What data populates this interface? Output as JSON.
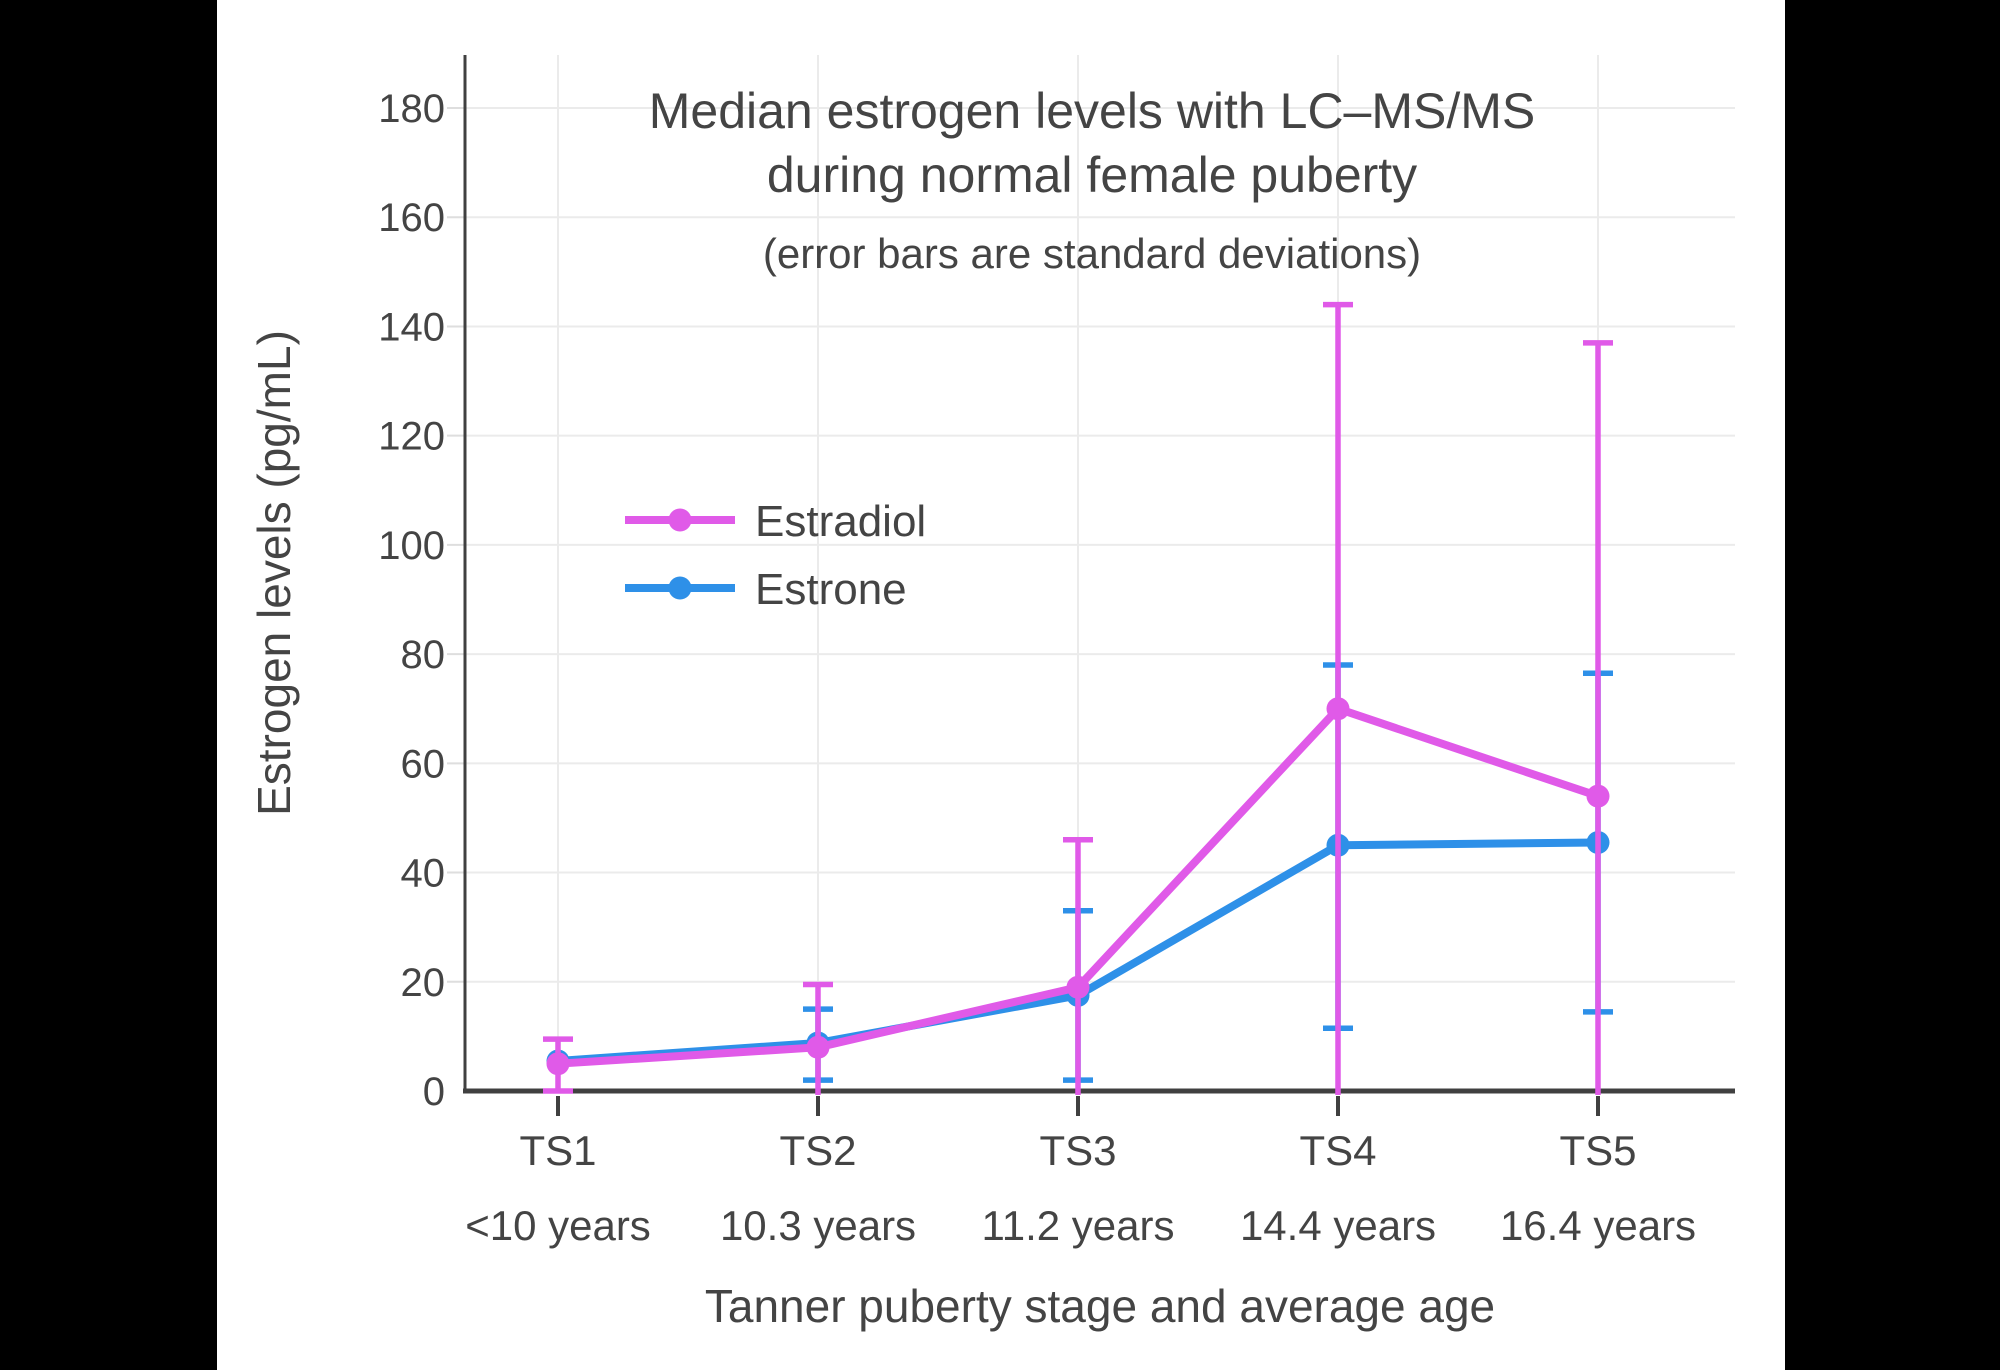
{
  "page": {
    "background": "#000000",
    "canvas_background": "#ffffff"
  },
  "chart_data": {
    "type": "line",
    "title": "Median estrogen levels with LC–MS/MS",
    "title_line2": "during normal female puberty",
    "subtitle": "(error bars are standard deviations)",
    "xlabel": "Tanner puberty stage and average age",
    "ylabel": "Estrogen levels (pg/mL)",
    "categories": [
      "TS1",
      "TS2",
      "TS3",
      "TS4",
      "TS5"
    ],
    "category_ages": [
      "<10 years",
      "10.3 years",
      "11.2 years",
      "14.4 years",
      "16.4 years"
    ],
    "yticks": [
      0,
      20,
      40,
      60,
      80,
      100,
      120,
      140,
      160,
      180
    ],
    "ylim": [
      0,
      190
    ],
    "grid": true,
    "error_bars": "standard deviations",
    "legend_position": "inside upper-left",
    "legend_entries": [
      "Estradiol",
      "Estrone"
    ],
    "series": [
      {
        "name": "Estrone",
        "color": "#2E90E8",
        "values": [
          5.5,
          8.8,
          17.5,
          45,
          45.5
        ],
        "err_upper": [
          null,
          15,
          33,
          78,
          76.5
        ],
        "err_lower": [
          null,
          2,
          2,
          11.5,
          14.5
        ]
      },
      {
        "name": "Estradiol",
        "color": "#E05AE8",
        "values": [
          5,
          8,
          19,
          70,
          54
        ],
        "err_upper": [
          9.5,
          19.5,
          46,
          144,
          137
        ],
        "err_lower": [
          0,
          -3.5,
          -8,
          -4,
          -29
        ]
      }
    ],
    "colors": {
      "axis": "#404040",
      "text": "#444444",
      "grid": "#ebebeb",
      "tick_stub": "#dedede"
    }
  }
}
